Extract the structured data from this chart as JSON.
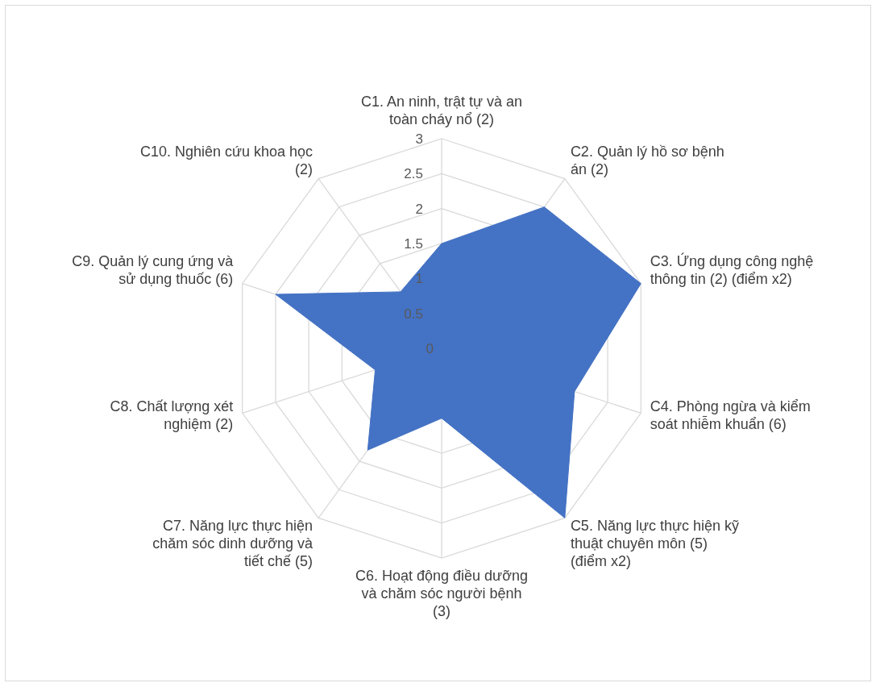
{
  "chart_data": {
    "type": "radar",
    "categories": [
      "C1. An ninh, trật tự và an toàn cháy nổ (2)",
      "C2. Quản lý hồ sơ bệnh án (2)",
      "C3. Ứng dụng công nghệ thông tin (2) (điểm x2)",
      "C4. Phòng ngừa và kiểm soát nhiễm khuẩn (6)",
      "C5. Năng lực thực hiện kỹ thuật chuyên môn (5) (điểm x2)",
      "C6. Hoạt động điều dưỡng và chăm sóc người bệnh (3)",
      "C7. Năng lực thực hiện chăm sóc dinh dưỡng và tiết chế (5)",
      "C8. Chất lượng xét nghiệm (2)",
      "C9. Quản lý cung ứng và sử dụng thuốc (6)",
      "C10. Nghiên cứu khoa học (2)"
    ],
    "series": [
      {
        "color": "#4472c4",
        "values": [
          1.5,
          2.5,
          3,
          2,
          3,
          1,
          1.8,
          1,
          2.5,
          1
        ]
      }
    ],
    "ylim": [
      0,
      3
    ],
    "yticks": [
      0,
      0.5,
      1,
      1.5,
      2,
      2.5,
      3
    ],
    "grid": true
  }
}
